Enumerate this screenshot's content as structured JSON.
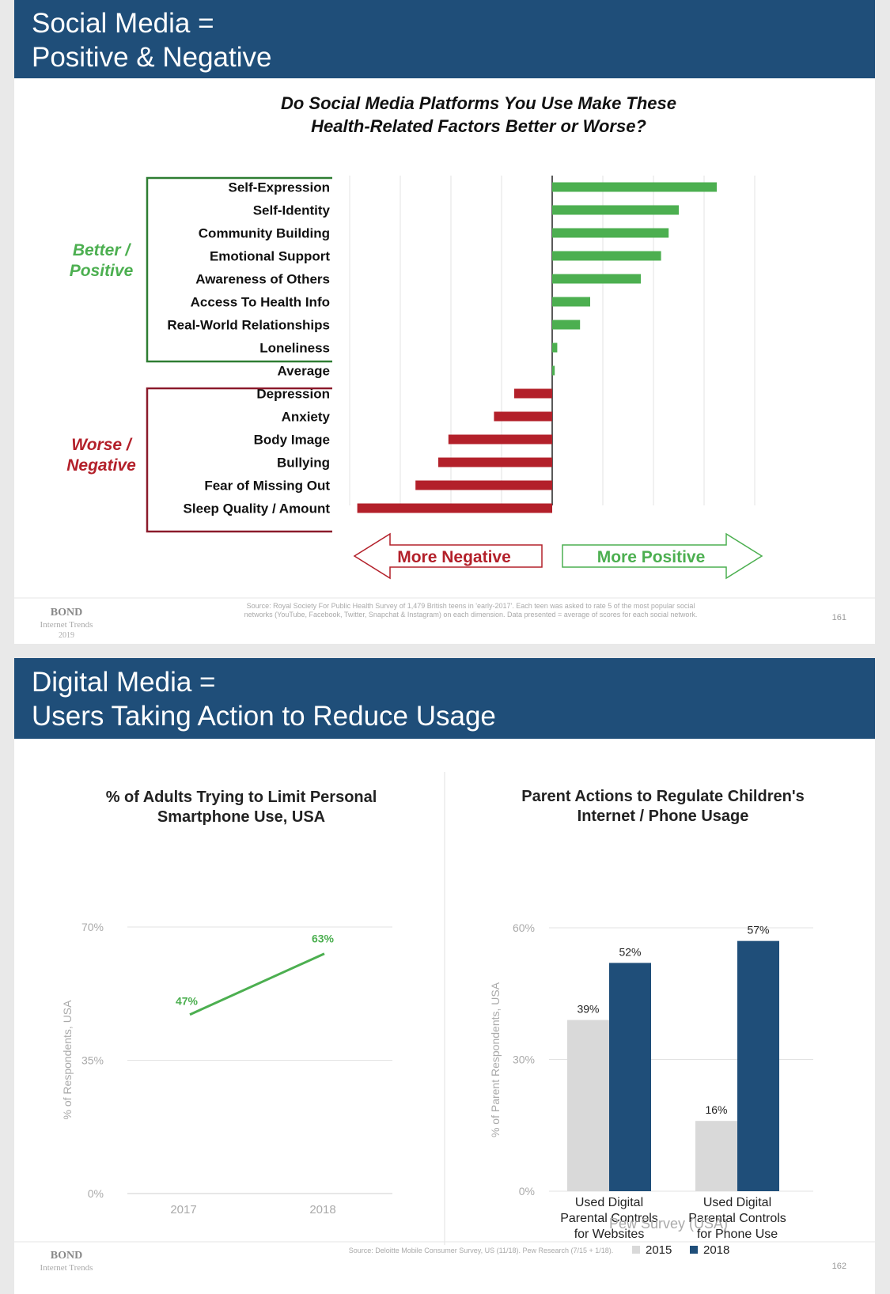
{
  "colors": {
    "header_bg": "#1f4e79",
    "positive": "#4caf50",
    "negative": "#b3202a",
    "gray_bar": "#d9d9d9",
    "navy_bar": "#1f4e79"
  },
  "slide1": {
    "header": {
      "line1": "Social Media =",
      "line2": "Positive & Negative"
    },
    "chart_title": {
      "line1": "Do Social Media Platforms You Use Make These",
      "line2": "Health-Related Factors Better or Worse?"
    },
    "group_positive": {
      "line1": "Better /",
      "line2": "Positive"
    },
    "group_negative": {
      "line1": "Worse /",
      "line2": "Negative"
    },
    "arrow_negative": "More Negative",
    "arrow_positive": "More Positive",
    "source": {
      "line1": "Source: Royal Society For Public Health Survey of 1,479 British teens in 'early-2017'. Each teen was asked to rate 5 of the most popular social",
      "line2": "networks (YouTube, Facebook, Twitter, Snapchat & Instagram) on each dimension. Data presented = average of scores for each social network."
    },
    "footer": {
      "brand": "BOND",
      "sub": "Internet Trends",
      "year": "2019",
      "page": "161"
    }
  },
  "slide2": {
    "header": {
      "line1": "Digital Media =",
      "line2": "Users Taking Action to Reduce Usage"
    },
    "left_chart_title": {
      "line1": "% of Adults Trying to Limit Personal",
      "line2": "Smartphone Use, USA"
    },
    "right_chart_title": {
      "line1": "Parent Actions to Regulate Children's",
      "line2": "Internet / Phone Usage"
    },
    "pew_label": "Pew Survey (USA)",
    "source": "Source: Deloitte Mobile Consumer Survey, US (11/18). Pew Research (7/15 + 1/18).",
    "footer": {
      "brand": "BOND",
      "sub": "Internet Trends",
      "page": "162"
    }
  },
  "chart_data": [
    {
      "type": "bar",
      "orientation": "horizontal",
      "title": "Do Social Media Platforms You Use Make These Health-Related Factors Better or Worse?",
      "categories": [
        "Self-Expression",
        "Self-Identity",
        "Community Building",
        "Emotional Support",
        "Awareness of Others",
        "Access To Health Info",
        "Real-World Relationships",
        "Loneliness",
        "Average",
        "Depression",
        "Anxiety",
        "Body Image",
        "Bullying",
        "Fear of Missing Out",
        "Sleep Quality / Amount"
      ],
      "values": [
        0.65,
        0.5,
        0.46,
        0.43,
        0.35,
        0.15,
        0.11,
        0.02,
        0.01,
        -0.15,
        -0.23,
        -0.41,
        -0.45,
        -0.54,
        -0.77
      ],
      "xlim": [
        -0.8,
        0.8
      ],
      "grid": true
    },
    {
      "type": "line",
      "title": "% of Adults Trying to Limit Personal Smartphone Use, USA",
      "x": [
        "2017",
        "2018"
      ],
      "series": [
        {
          "values": [
            47,
            63
          ],
          "labels": [
            "47%",
            "63%"
          ]
        }
      ],
      "ylabel": "% of Respondents, USA",
      "yticks": [
        "0%",
        "35%",
        "70%"
      ],
      "ylim": [
        0,
        70
      ],
      "grid": true
    },
    {
      "type": "bar",
      "title": "Parent Actions to Regulate Children's Internet / Phone Usage",
      "categories": [
        [
          "Used Digital",
          "Parental Controls",
          "for Websites"
        ],
        [
          "Used Digital",
          "Parental Controls",
          "for Phone Use"
        ]
      ],
      "series": [
        {
          "name": "2015",
          "values": [
            39,
            16
          ],
          "labels": [
            "39%",
            "16%"
          ]
        },
        {
          "name": "2018",
          "values": [
            52,
            57
          ],
          "labels": [
            "52%",
            "57%"
          ]
        }
      ],
      "ylabel": "% of Parent Respondents, USA",
      "yticks": [
        "0%",
        "30%",
        "60%"
      ],
      "ylim": [
        0,
        60
      ],
      "legend": "bottom",
      "grid": true
    }
  ]
}
